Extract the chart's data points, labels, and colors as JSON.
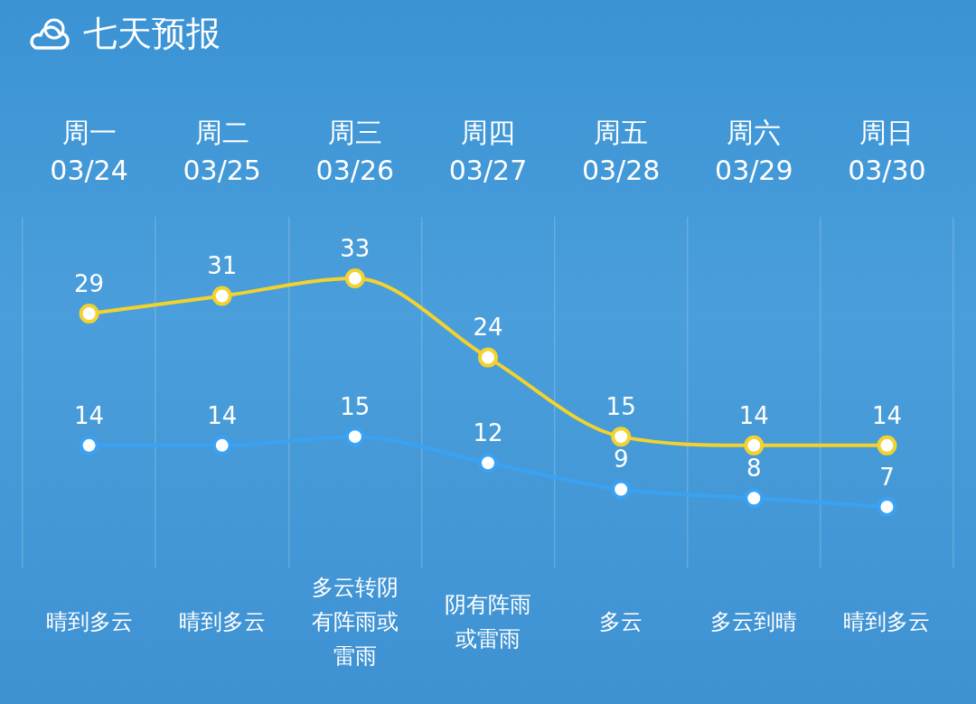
{
  "chart_data": {
    "type": "line",
    "title": "七天预报",
    "categories": [
      "周一 03/24",
      "周二 03/25",
      "周三 03/26",
      "周四 03/27",
      "周五 03/28",
      "周六 03/29",
      "周日 03/30"
    ],
    "series": [
      {
        "color": "#f2d22e",
        "values": [
          29,
          31,
          33,
          24,
          15,
          14,
          14
        ]
      },
      {
        "color": "#3aa2f2",
        "values": [
          14,
          14,
          15,
          12,
          9,
          8,
          7
        ]
      }
    ],
    "data_labels": true,
    "grid": "x",
    "legend": false,
    "marker": "circle",
    "line_style": "solid",
    "annotations": [
      "晴到多云",
      "晴到多云",
      "多云转阴有阵雨或雷雨",
      "阴有阵雨或雷雨",
      "多云",
      "多云到晴",
      "晴到多云"
    ]
  }
}
